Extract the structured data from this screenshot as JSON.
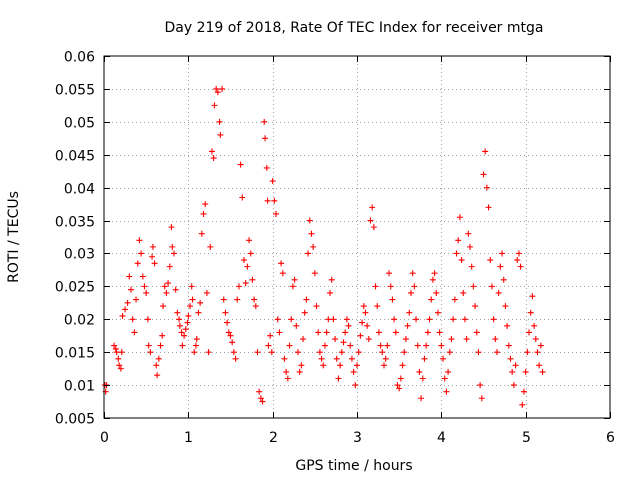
{
  "chart_data": {
    "type": "scatter",
    "title": "Day 219 of 2018, Rate Of TEC Index for receiver mtga",
    "xlabel": "GPS time / hours",
    "ylabel": "ROTI / TECUs",
    "xlim": [
      0,
      6
    ],
    "ylim": [
      0.005,
      0.06
    ],
    "xticks": [
      0,
      1,
      2,
      3,
      4,
      5,
      6
    ],
    "xtick_labels": [
      "0",
      "1",
      "2",
      "3",
      "4",
      "5",
      "6"
    ],
    "yticks": [
      0.005,
      0.01,
      0.015,
      0.02,
      0.025,
      0.03,
      0.035,
      0.04,
      0.045,
      0.05,
      0.055,
      0.06
    ],
    "ytick_labels": [
      "0.005",
      "0.01",
      "0.015",
      "0.02",
      "0.025",
      "0.03",
      "0.035",
      "0.04",
      "0.045",
      "0.05",
      "0.055",
      "0.06"
    ],
    "grid": true,
    "marker": "plus",
    "series": [
      {
        "name": "ROTI",
        "color": "#ff0000",
        "points": [
          [
            0.01,
            0.01
          ],
          [
            0.02,
            0.009
          ],
          [
            0.03,
            0.01
          ],
          [
            0.12,
            0.016
          ],
          [
            0.14,
            0.0155
          ],
          [
            0.15,
            0.015
          ],
          [
            0.17,
            0.014
          ],
          [
            0.18,
            0.013
          ],
          [
            0.2,
            0.0125
          ],
          [
            0.21,
            0.015
          ],
          [
            0.22,
            0.0205
          ],
          [
            0.25,
            0.0215
          ],
          [
            0.28,
            0.0225
          ],
          [
            0.3,
            0.0265
          ],
          [
            0.32,
            0.0245
          ],
          [
            0.34,
            0.02
          ],
          [
            0.36,
            0.018
          ],
          [
            0.38,
            0.023
          ],
          [
            0.4,
            0.0285
          ],
          [
            0.42,
            0.032
          ],
          [
            0.44,
            0.03
          ],
          [
            0.46,
            0.0265
          ],
          [
            0.48,
            0.025
          ],
          [
            0.5,
            0.024
          ],
          [
            0.52,
            0.02
          ],
          [
            0.53,
            0.016
          ],
          [
            0.55,
            0.015
          ],
          [
            0.57,
            0.0295
          ],
          [
            0.58,
            0.031
          ],
          [
            0.6,
            0.0285
          ],
          [
            0.62,
            0.013
          ],
          [
            0.63,
            0.0115
          ],
          [
            0.65,
            0.014
          ],
          [
            0.67,
            0.016
          ],
          [
            0.69,
            0.0175
          ],
          [
            0.7,
            0.022
          ],
          [
            0.72,
            0.025
          ],
          [
            0.74,
            0.024
          ],
          [
            0.76,
            0.0255
          ],
          [
            0.78,
            0.028
          ],
          [
            0.8,
            0.034
          ],
          [
            0.81,
            0.031
          ],
          [
            0.83,
            0.03
          ],
          [
            0.85,
            0.0245
          ],
          [
            0.87,
            0.021
          ],
          [
            0.89,
            0.02
          ],
          [
            0.9,
            0.019
          ],
          [
            0.92,
            0.018
          ],
          [
            0.93,
            0.016
          ],
          [
            0.95,
            0.0175
          ],
          [
            0.97,
            0.0185
          ],
          [
            0.99,
            0.0195
          ],
          [
            1.0,
            0.0205
          ],
          [
            1.02,
            0.022
          ],
          [
            1.04,
            0.025
          ],
          [
            1.05,
            0.023
          ],
          [
            1.07,
            0.015
          ],
          [
            1.09,
            0.016
          ],
          [
            1.1,
            0.017
          ],
          [
            1.12,
            0.021
          ],
          [
            1.14,
            0.0225
          ],
          [
            1.16,
            0.033
          ],
          [
            1.18,
            0.036
          ],
          [
            1.2,
            0.0375
          ],
          [
            1.22,
            0.024
          ],
          [
            1.24,
            0.015
          ],
          [
            1.26,
            0.031
          ],
          [
            1.28,
            0.0455
          ],
          [
            1.3,
            0.0445
          ],
          [
            1.31,
            0.0525
          ],
          [
            1.33,
            0.055
          ],
          [
            1.35,
            0.0545
          ],
          [
            1.37,
            0.05
          ],
          [
            1.38,
            0.048
          ],
          [
            1.4,
            0.055
          ],
          [
            1.42,
            0.023
          ],
          [
            1.44,
            0.021
          ],
          [
            1.46,
            0.0195
          ],
          [
            1.48,
            0.018
          ],
          [
            1.5,
            0.0175
          ],
          [
            1.52,
            0.0165
          ],
          [
            1.54,
            0.015
          ],
          [
            1.56,
            0.014
          ],
          [
            1.58,
            0.023
          ],
          [
            1.6,
            0.025
          ],
          [
            1.62,
            0.0435
          ],
          [
            1.64,
            0.0385
          ],
          [
            1.66,
            0.029
          ],
          [
            1.68,
            0.0255
          ],
          [
            1.7,
            0.028
          ],
          [
            1.72,
            0.032
          ],
          [
            1.74,
            0.03
          ],
          [
            1.76,
            0.026
          ],
          [
            1.78,
            0.023
          ],
          [
            1.8,
            0.022
          ],
          [
            1.82,
            0.015
          ],
          [
            1.84,
            0.009
          ],
          [
            1.86,
            0.008
          ],
          [
            1.88,
            0.0075
          ],
          [
            1.9,
            0.05
          ],
          [
            1.91,
            0.0475
          ],
          [
            1.93,
            0.043
          ],
          [
            1.94,
            0.038
          ],
          [
            1.95,
            0.016
          ],
          [
            1.97,
            0.0175
          ],
          [
            1.99,
            0.015
          ],
          [
            2.0,
            0.041
          ],
          [
            2.02,
            0.038
          ],
          [
            2.04,
            0.036
          ],
          [
            2.06,
            0.02
          ],
          [
            2.08,
            0.018
          ],
          [
            2.1,
            0.0285
          ],
          [
            2.12,
            0.027
          ],
          [
            2.14,
            0.014
          ],
          [
            2.16,
            0.012
          ],
          [
            2.18,
            0.011
          ],
          [
            2.2,
            0.016
          ],
          [
            2.22,
            0.02
          ],
          [
            2.24,
            0.025
          ],
          [
            2.26,
            0.026
          ],
          [
            2.28,
            0.019
          ],
          [
            2.3,
            0.015
          ],
          [
            2.32,
            0.012
          ],
          [
            2.34,
            0.013
          ],
          [
            2.36,
            0.017
          ],
          [
            2.38,
            0.021
          ],
          [
            2.4,
            0.023
          ],
          [
            2.42,
            0.03
          ],
          [
            2.44,
            0.035
          ],
          [
            2.46,
            0.033
          ],
          [
            2.48,
            0.031
          ],
          [
            2.5,
            0.027
          ],
          [
            2.52,
            0.022
          ],
          [
            2.54,
            0.018
          ],
          [
            2.56,
            0.015
          ],
          [
            2.58,
            0.014
          ],
          [
            2.6,
            0.013
          ],
          [
            2.62,
            0.016
          ],
          [
            2.64,
            0.018
          ],
          [
            2.66,
            0.02
          ],
          [
            2.68,
            0.024
          ],
          [
            2.7,
            0.026
          ],
          [
            2.72,
            0.02
          ],
          [
            2.74,
            0.017
          ],
          [
            2.76,
            0.014
          ],
          [
            2.78,
            0.011
          ],
          [
            2.8,
            0.013
          ],
          [
            2.82,
            0.015
          ],
          [
            2.84,
            0.0165
          ],
          [
            2.86,
            0.018
          ],
          [
            2.88,
            0.02
          ],
          [
            2.9,
            0.019
          ],
          [
            2.92,
            0.016
          ],
          [
            2.94,
            0.014
          ],
          [
            2.96,
            0.012
          ],
          [
            2.98,
            0.01
          ],
          [
            3.0,
            0.013
          ],
          [
            3.02,
            0.015
          ],
          [
            3.04,
            0.0175
          ],
          [
            3.06,
            0.0195
          ],
          [
            3.08,
            0.022
          ],
          [
            3.1,
            0.021
          ],
          [
            3.12,
            0.019
          ],
          [
            3.14,
            0.017
          ],
          [
            3.16,
            0.035
          ],
          [
            3.18,
            0.037
          ],
          [
            3.2,
            0.034
          ],
          [
            3.22,
            0.025
          ],
          [
            3.24,
            0.022
          ],
          [
            3.26,
            0.018
          ],
          [
            3.28,
            0.016
          ],
          [
            3.3,
            0.015
          ],
          [
            3.32,
            0.013
          ],
          [
            3.34,
            0.014
          ],
          [
            3.36,
            0.016
          ],
          [
            3.38,
            0.027
          ],
          [
            3.4,
            0.025
          ],
          [
            3.42,
            0.023
          ],
          [
            3.44,
            0.02
          ],
          [
            3.46,
            0.018
          ],
          [
            3.48,
            0.01
          ],
          [
            3.5,
            0.0095
          ],
          [
            3.52,
            0.011
          ],
          [
            3.54,
            0.013
          ],
          [
            3.56,
            0.015
          ],
          [
            3.58,
            0.017
          ],
          [
            3.6,
            0.019
          ],
          [
            3.62,
            0.021
          ],
          [
            3.64,
            0.024
          ],
          [
            3.66,
            0.027
          ],
          [
            3.68,
            0.025
          ],
          [
            3.7,
            0.02
          ],
          [
            3.72,
            0.016
          ],
          [
            3.74,
            0.012
          ],
          [
            3.76,
            0.008
          ],
          [
            3.78,
            0.011
          ],
          [
            3.8,
            0.014
          ],
          [
            3.82,
            0.016
          ],
          [
            3.84,
            0.018
          ],
          [
            3.86,
            0.02
          ],
          [
            3.88,
            0.023
          ],
          [
            3.9,
            0.026
          ],
          [
            3.92,
            0.027
          ],
          [
            3.94,
            0.024
          ],
          [
            3.96,
            0.021
          ],
          [
            3.98,
            0.018
          ],
          [
            4.0,
            0.016
          ],
          [
            4.02,
            0.014
          ],
          [
            4.04,
            0.011
          ],
          [
            4.06,
            0.009
          ],
          [
            4.08,
            0.012
          ],
          [
            4.1,
            0.015
          ],
          [
            4.12,
            0.017
          ],
          [
            4.14,
            0.02
          ],
          [
            4.16,
            0.023
          ],
          [
            4.18,
            0.03
          ],
          [
            4.2,
            0.032
          ],
          [
            4.22,
            0.0355
          ],
          [
            4.24,
            0.029
          ],
          [
            4.26,
            0.024
          ],
          [
            4.28,
            0.02
          ],
          [
            4.3,
            0.017
          ],
          [
            4.32,
            0.033
          ],
          [
            4.34,
            0.031
          ],
          [
            4.36,
            0.028
          ],
          [
            4.38,
            0.025
          ],
          [
            4.4,
            0.022
          ],
          [
            4.42,
            0.018
          ],
          [
            4.44,
            0.015
          ],
          [
            4.46,
            0.01
          ],
          [
            4.48,
            0.008
          ],
          [
            4.5,
            0.042
          ],
          [
            4.52,
            0.0455
          ],
          [
            4.54,
            0.04
          ],
          [
            4.56,
            0.037
          ],
          [
            4.58,
            0.029
          ],
          [
            4.6,
            0.025
          ],
          [
            4.62,
            0.02
          ],
          [
            4.64,
            0.017
          ],
          [
            4.66,
            0.015
          ],
          [
            4.68,
            0.024
          ],
          [
            4.7,
            0.028
          ],
          [
            4.72,
            0.03
          ],
          [
            4.74,
            0.026
          ],
          [
            4.76,
            0.022
          ],
          [
            4.78,
            0.019
          ],
          [
            4.8,
            0.016
          ],
          [
            4.82,
            0.014
          ],
          [
            4.84,
            0.012
          ],
          [
            4.86,
            0.01
          ],
          [
            4.88,
            0.013
          ],
          [
            4.9,
            0.029
          ],
          [
            4.92,
            0.03
          ],
          [
            4.94,
            0.028
          ],
          [
            4.96,
            0.007
          ],
          [
            4.98,
            0.009
          ],
          [
            5.0,
            0.012
          ],
          [
            5.02,
            0.015
          ],
          [
            5.04,
            0.018
          ],
          [
            5.06,
            0.021
          ],
          [
            5.08,
            0.0235
          ],
          [
            5.1,
            0.019
          ],
          [
            5.12,
            0.017
          ],
          [
            5.14,
            0.015
          ],
          [
            5.16,
            0.013
          ],
          [
            5.18,
            0.016
          ],
          [
            5.2,
            0.012
          ]
        ]
      }
    ]
  }
}
